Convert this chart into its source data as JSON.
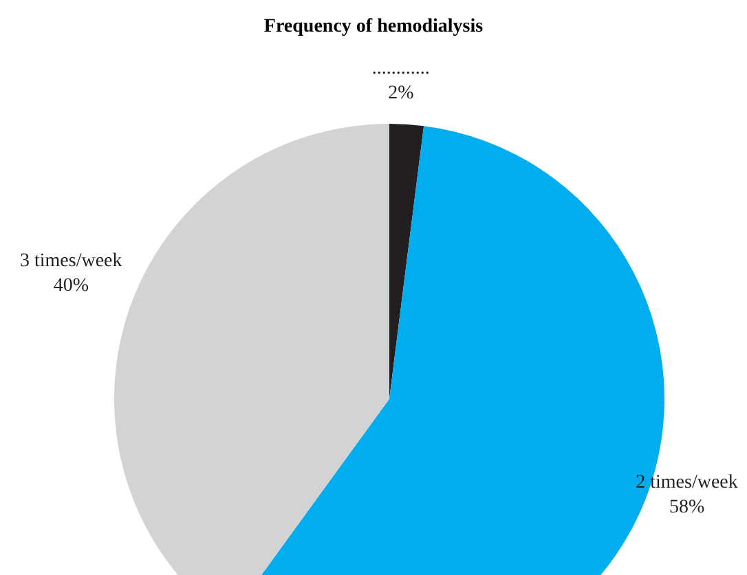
{
  "chart_data": {
    "type": "pie",
    "title": "Frequency of hemodialysis",
    "categories": [
      "............",
      "2 times/week",
      "3 times/week"
    ],
    "values": [
      2,
      58,
      40
    ],
    "colors": [
      "#231f20",
      "#00aeef",
      "#d1d3d4"
    ],
    "value_labels": [
      "2%",
      "58%",
      "40%"
    ]
  }
}
